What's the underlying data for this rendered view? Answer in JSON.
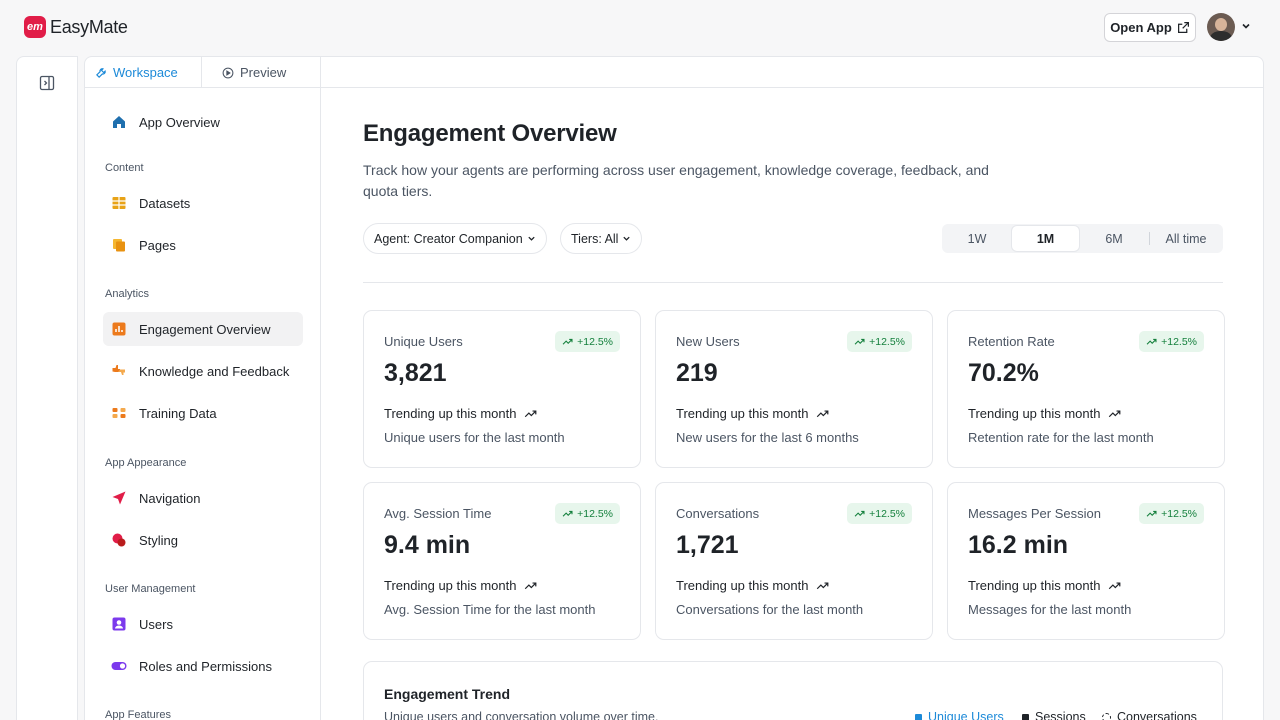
{
  "brand": {
    "name": "EasyMate",
    "mark": "em",
    "accent": "#e11d48"
  },
  "header": {
    "open_app_label": "Open App"
  },
  "tabs": [
    {
      "label": "Workspace",
      "icon": "wrench-icon"
    },
    {
      "label": "Preview",
      "icon": "play-circle-icon"
    }
  ],
  "sidebar": {
    "app_overview": "App Overview",
    "sections": {
      "content": "Content",
      "analytics": "Analytics",
      "app_appearance": "App Appearance",
      "user_management": "User Management",
      "app_features": "App Features"
    },
    "items": {
      "datasets": "Datasets",
      "pages": "Pages",
      "engagement_overview": "Engagement Overview",
      "knowledge_feedback": "Knowledge and Feedback",
      "training_data": "Training Data",
      "navigation": "Navigation",
      "styling": "Styling",
      "users": "Users",
      "roles_permissions": "Roles and Permissions"
    }
  },
  "main": {
    "title": "Engagement Overview",
    "description": "Track how your agents are performing across user engagement, knowledge coverage, feedback, and quota tiers.",
    "filters": {
      "agent": "Agent: Creator Companion",
      "tiers": "Tiers: All"
    },
    "ranges": [
      "1W",
      "1M",
      "6M",
      "All time"
    ],
    "active_range": "1M",
    "cards": [
      {
        "label": "Unique Users",
        "badge": "+12.5%",
        "value": "3,821",
        "trend": "Trending up this month",
        "foot": "Unique users for the last month"
      },
      {
        "label": "New Users",
        "badge": "+12.5%",
        "value": "219",
        "trend": "Trending up this month",
        "foot": "New users for the last 6 months"
      },
      {
        "label": "Retention Rate",
        "badge": "+12.5%",
        "value": "70.2%",
        "trend": "Trending up this month",
        "foot": "Retention rate for the last month"
      },
      {
        "label": "Avg. Session Time",
        "badge": "+12.5%",
        "value": "9.4 min",
        "trend": "Trending up this month",
        "foot": "Avg. Session Time for the last month"
      },
      {
        "label": "Conversations",
        "badge": "+12.5%",
        "value": "1,721",
        "trend": "Trending up this month",
        "foot": "Conversations for the last month"
      },
      {
        "label": "Messages Per Session",
        "badge": "+12.5%",
        "value": "16.2 min",
        "trend": "Trending up this month",
        "foot": "Messages for the last month"
      }
    ],
    "trend": {
      "title": "Engagement Trend",
      "subtitle": "Unique users and conversation volume over time.",
      "legend": [
        {
          "label": "Unique Users",
          "color": "#1d8ad8"
        },
        {
          "label": "Sessions",
          "color": "#1f2328"
        },
        {
          "label": "Conversations",
          "color": "#1f2328"
        }
      ]
    }
  }
}
